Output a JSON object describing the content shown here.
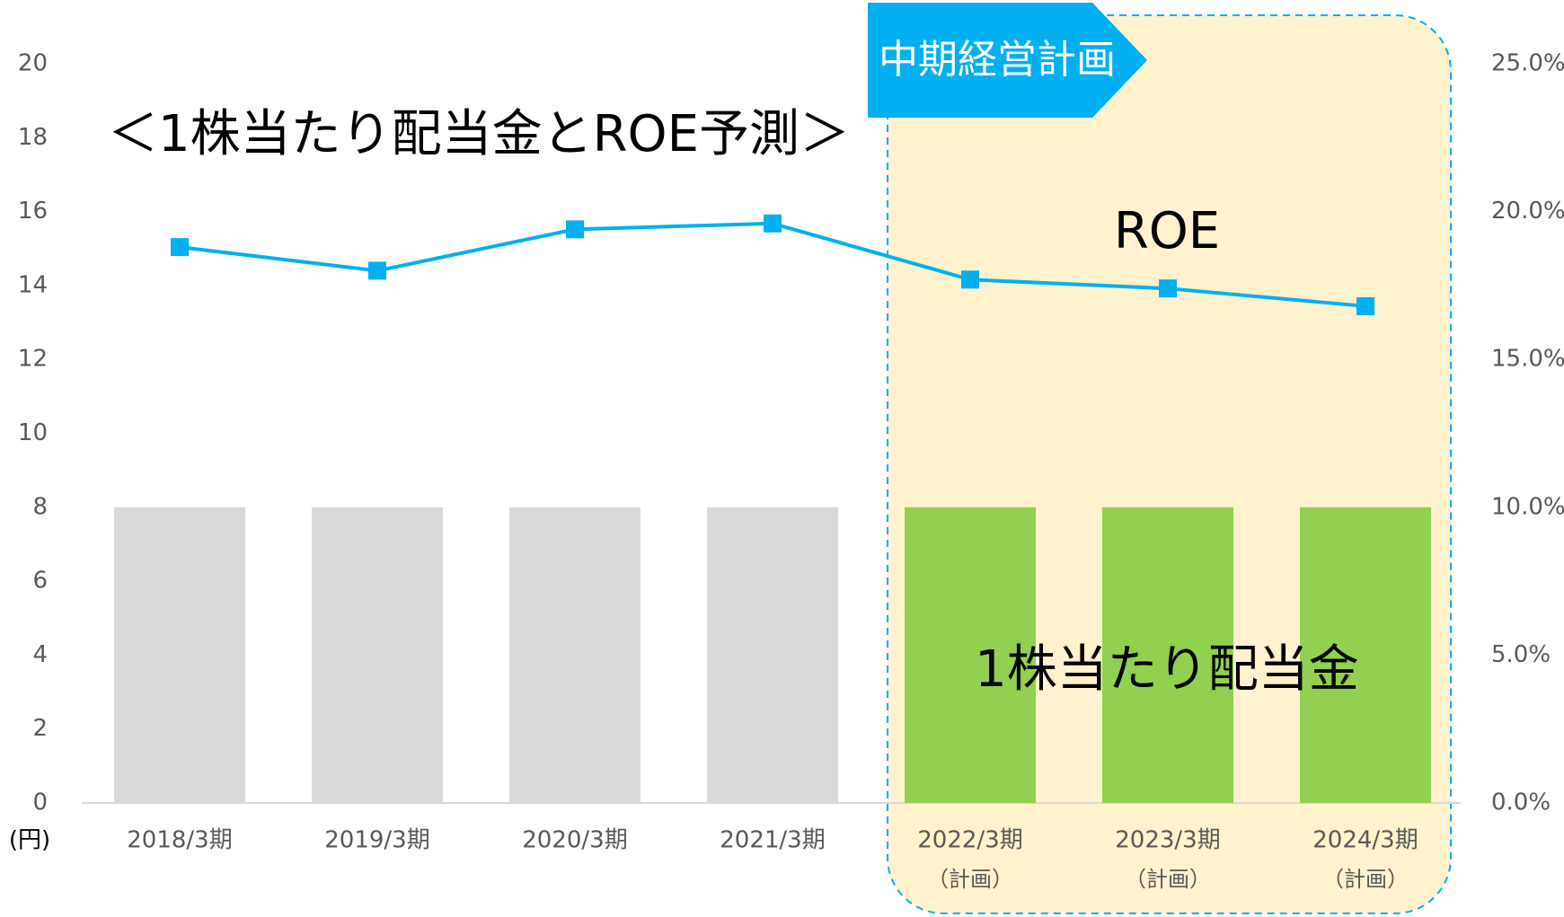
{
  "chart_data": {
    "type": "bar_line",
    "title": "＜1株当たり配当金とROE予測＞",
    "annotation": "中期経営計画",
    "y_unit": "(円)",
    "categories": [
      "2018/3期",
      "2019/3期",
      "2020/3期",
      "2021/3期",
      "2022/3期",
      "2023/3期",
      "2024/3期"
    ],
    "category_notes": [
      null,
      null,
      null,
      null,
      "（計画）",
      "（計画）",
      "（計画）"
    ],
    "series": [
      {
        "name": "1株当たり配当金",
        "type": "bar",
        "values": [
          8,
          8,
          8,
          8,
          8,
          8,
          8
        ],
        "colors": [
          "#d9d9d9",
          "#d9d9d9",
          "#d9d9d9",
          "#d9d9d9",
          "#92d050",
          "#92d050",
          "#92d050"
        ]
      },
      {
        "name": "ROE",
        "type": "line",
        "axis": "y2",
        "color": "#00b0f0",
        "values": [
          18.8,
          18.0,
          19.4,
          19.6,
          17.7,
          17.4,
          16.8
        ]
      }
    ],
    "ylim": [
      0,
      20
    ],
    "yticks": [
      0,
      2,
      4,
      6,
      8,
      10,
      12,
      14,
      16,
      18,
      20
    ],
    "y2lim": [
      0,
      25
    ],
    "y2ticks": [
      {
        "value": 0,
        "label": "0.0%"
      },
      {
        "value": 5,
        "label": "5.0%"
      },
      {
        "value": 10,
        "label": "10.0%"
      },
      {
        "value": 15,
        "label": "15.0%"
      },
      {
        "value": 20,
        "label": "20.0%"
      },
      {
        "value": 25,
        "label": "25.0%"
      }
    ]
  }
}
